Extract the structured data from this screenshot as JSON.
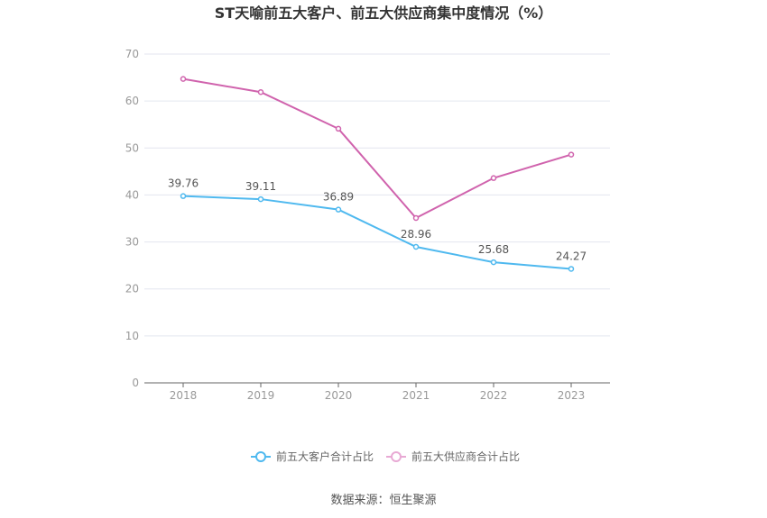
{
  "chart_data": {
    "type": "line",
    "title": "ST天喻前五大客户、前五大供应商集中度情况（%）",
    "x": [
      "2018",
      "2019",
      "2020",
      "2021",
      "2022",
      "2023"
    ],
    "ylim": [
      0,
      70
    ],
    "yticks": [
      0,
      10,
      20,
      30,
      40,
      50,
      60,
      70
    ],
    "grid": true,
    "legend_position": "bottom",
    "series": [
      {
        "name": "前五大客户合计占比",
        "color": "#4fb9ef",
        "values": [
          39.76,
          39.11,
          36.89,
          28.96,
          25.68,
          24.27
        ],
        "labels": [
          "39.76",
          "39.11",
          "36.89",
          "28.96",
          "25.68",
          "24.27"
        ]
      },
      {
        "name": "前五大供应商合计占比",
        "color": "#d063ad",
        "values": [
          64.7,
          61.9,
          54.1,
          35.1,
          43.6,
          48.6
        ]
      }
    ]
  },
  "source": "数据来源：恒生聚源"
}
